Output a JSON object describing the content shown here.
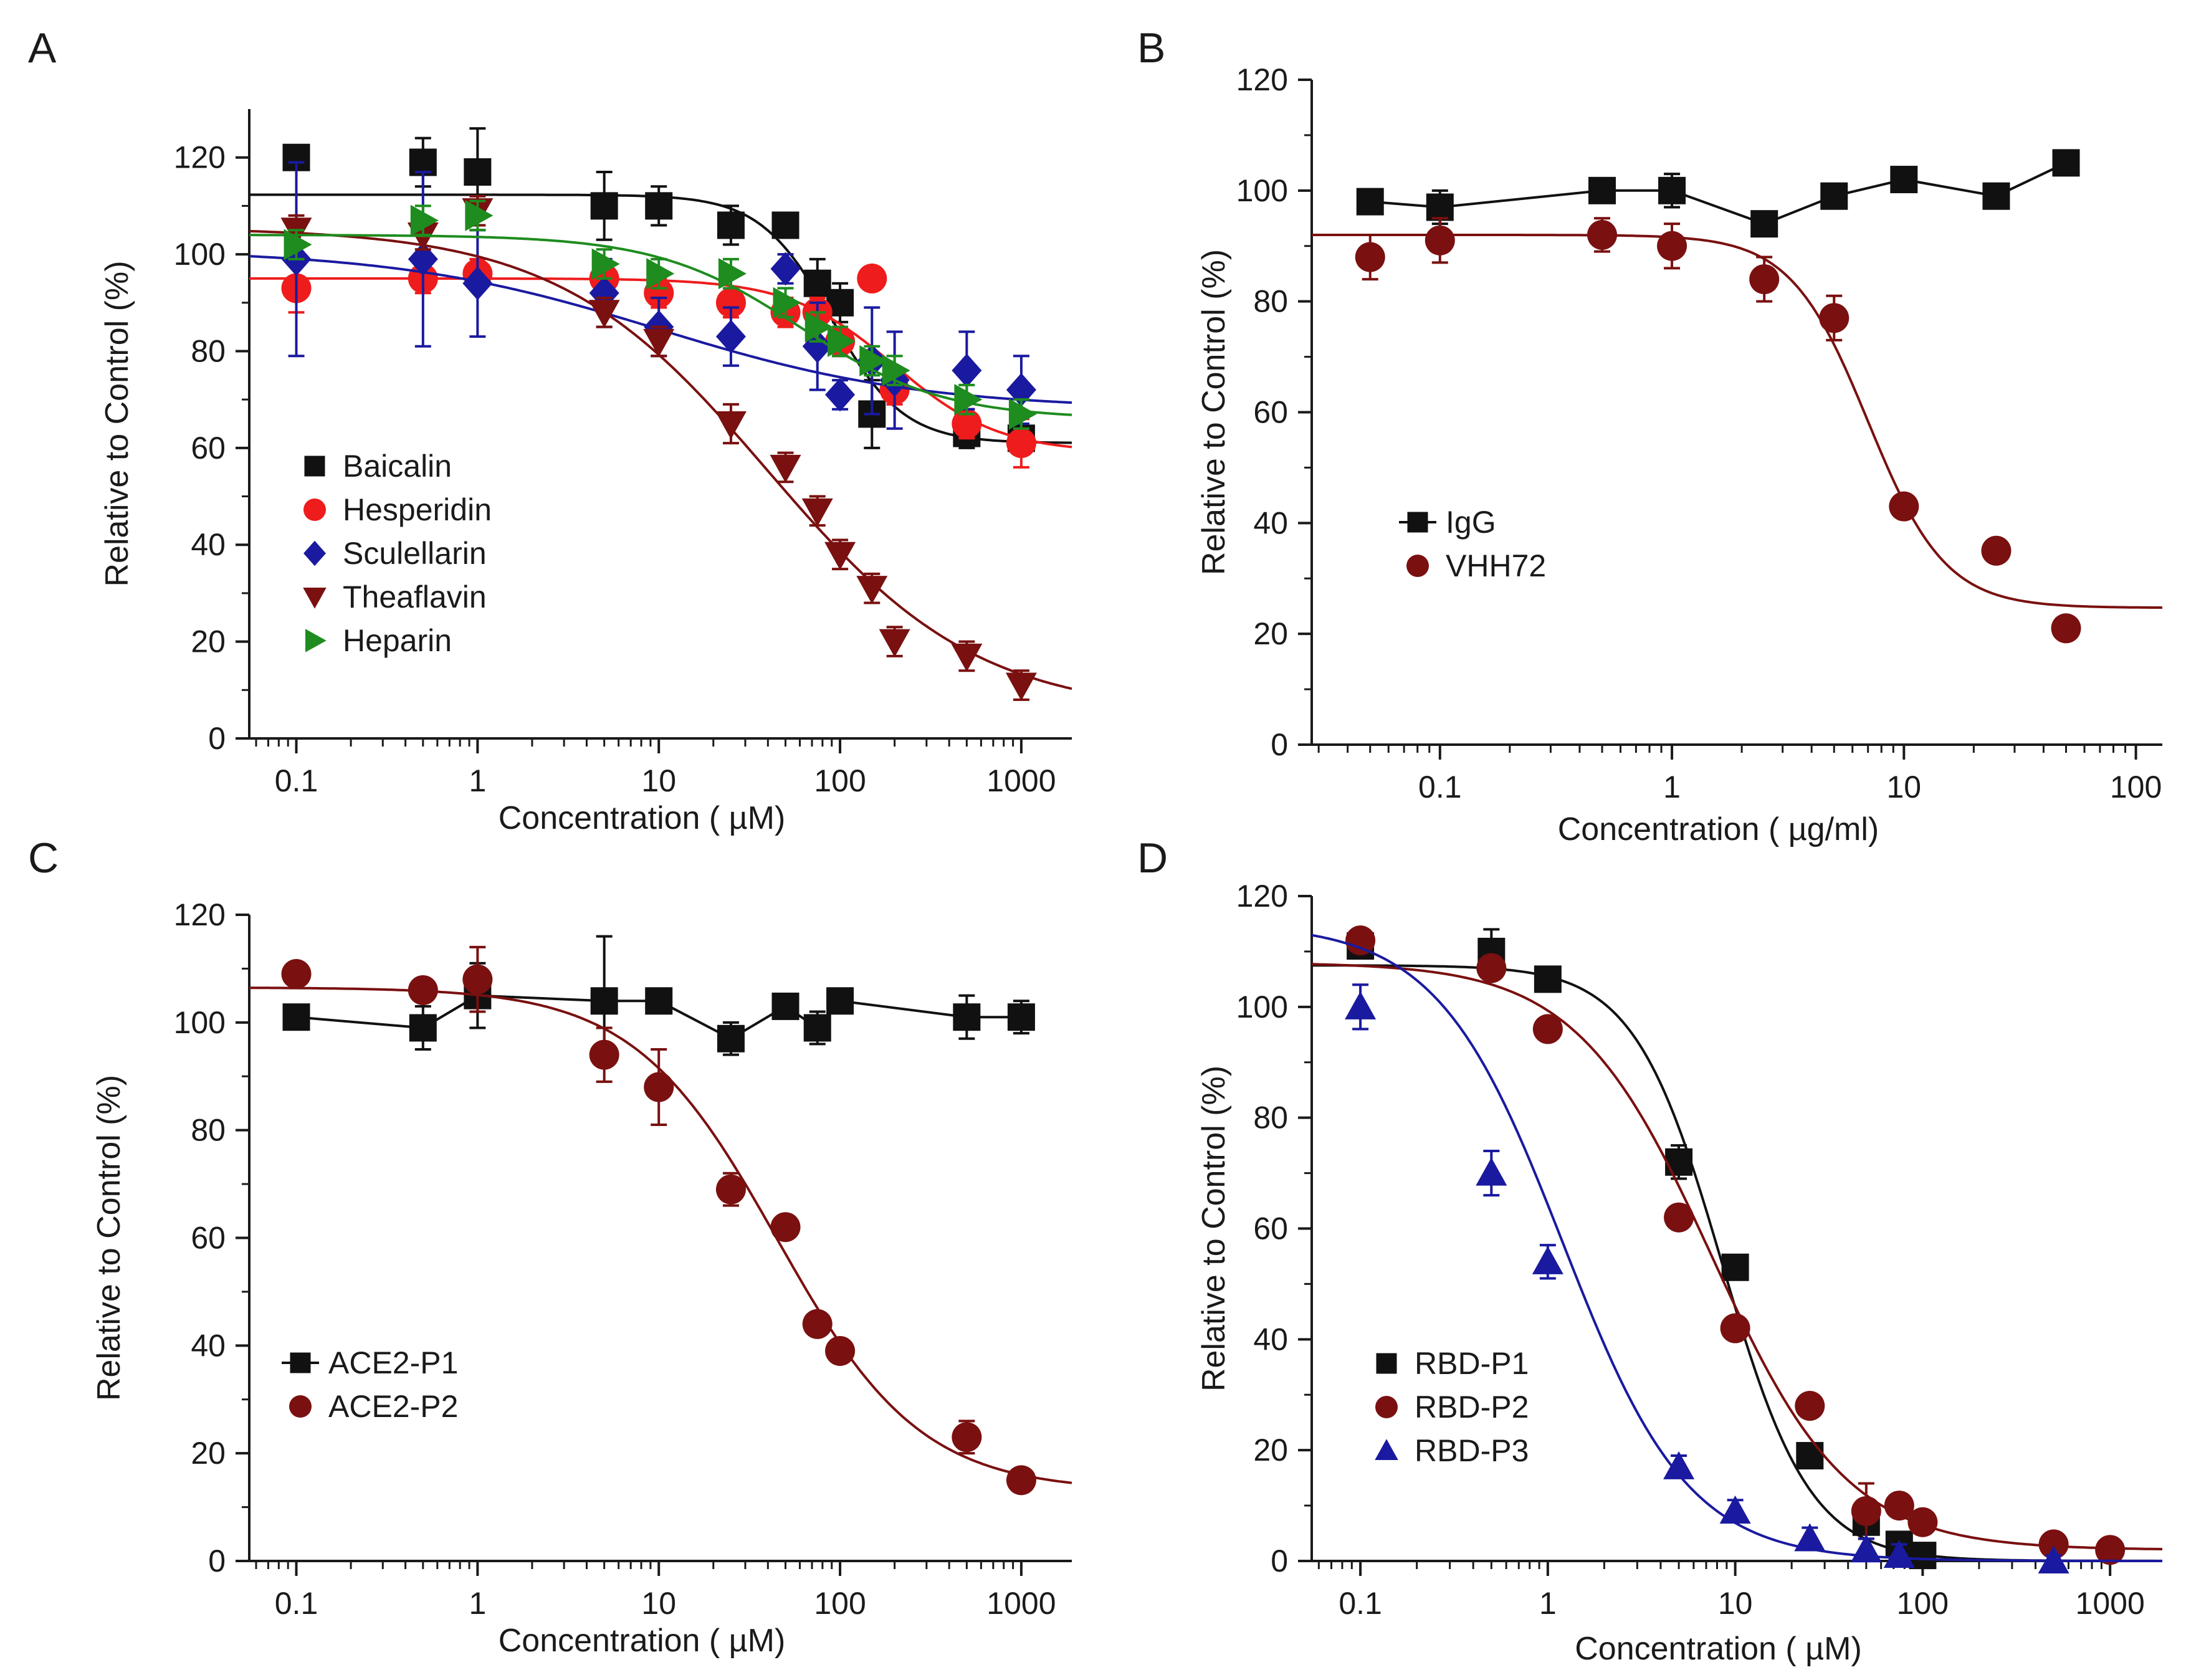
{
  "chart_data": [
    {
      "type": "scatter",
      "panel": "A",
      "xscale": "log",
      "xlabel": "Concentration ( µM)",
      "ylabel": "Relative to Control (%)",
      "xlim": [
        0.055,
        1900
      ],
      "ylim": [
        0,
        130
      ],
      "xticks": [
        0.1,
        1,
        10,
        100,
        1000
      ],
      "xtick_labels": [
        "0.1",
        "1",
        "10",
        "100",
        "1000"
      ],
      "yticks": [
        0,
        20,
        40,
        60,
        80,
        100,
        120
      ],
      "ytick_labels": [
        "0",
        "20",
        "40",
        "60",
        "80",
        "100",
        "120"
      ],
      "legend_position": "center-left",
      "series": [
        {
          "name": "Baicalin",
          "color": "#111111",
          "marker": "square",
          "x": [
            0.1,
            0.5,
            1,
            5,
            10,
            25,
            50,
            75,
            100,
            150,
            500,
            1000
          ],
          "y": [
            120,
            119,
            117,
            110,
            110,
            106,
            106,
            94,
            90,
            67,
            63,
            62
          ],
          "err": [
            2,
            5,
            9,
            7,
            4,
            4,
            2,
            5,
            4,
            7,
            3,
            3
          ],
          "fit": {
            "top": 112.3,
            "bottom": 61,
            "ec50": 90,
            "hill": 2.2
          }
        },
        {
          "name": "Hesperidin",
          "color": "#ee1c1c",
          "marker": "circle",
          "x": [
            0.1,
            0.5,
            1,
            5,
            10,
            25,
            50,
            75,
            100,
            150,
            200,
            500,
            1000
          ],
          "y": [
            93,
            95,
            96,
            95,
            92,
            90,
            88,
            88,
            82,
            95,
            72,
            65,
            61
          ],
          "err": [
            5,
            3,
            3,
            3,
            3,
            3,
            3,
            3,
            3,
            0,
            3,
            3,
            5
          ],
          "fit": {
            "top": 95,
            "bottom": 59,
            "ec50": 200,
            "hill": 1.5
          }
        },
        {
          "name": "Sculellarin",
          "color": "#1a1aa0",
          "marker": "diamond",
          "x": [
            0.1,
            0.5,
            1,
            5,
            10,
            25,
            50,
            75,
            100,
            150,
            200,
            500,
            1000
          ],
          "y": [
            99,
            99,
            94,
            92,
            85,
            83,
            97,
            81,
            71,
            78,
            74,
            76,
            72
          ],
          "err": [
            20,
            18,
            11,
            7,
            6,
            6,
            3,
            9,
            3,
            11,
            10,
            8,
            7
          ],
          "fit": {
            "top": 101,
            "bottom": 68,
            "ec50": 10,
            "hill": 0.6
          }
        },
        {
          "name": "Theaflavin",
          "color": "#7a1010",
          "marker": "triangle-down",
          "x": [
            0.1,
            0.5,
            1,
            5,
            10,
            25,
            50,
            75,
            100,
            150,
            200,
            500,
            1000
          ],
          "y": [
            105,
            104,
            109,
            88,
            82,
            65,
            56,
            47,
            38,
            31,
            20,
            17,
            11
          ],
          "err": [
            3,
            3,
            3,
            3,
            3,
            4,
            3,
            3,
            3,
            3,
            3,
            3,
            3
          ],
          "fit": {
            "top": 105.5,
            "bottom": 5,
            "ec50": 40,
            "hill": 0.75
          }
        },
        {
          "name": "Heparin",
          "color": "#1e8c1e",
          "marker": "triangle-right",
          "x": [
            0.1,
            0.5,
            1,
            5,
            10,
            25,
            50,
            75,
            100,
            150,
            200,
            500,
            1000
          ],
          "y": [
            102,
            107,
            108,
            98,
            96,
            96,
            90,
            85,
            82,
            78,
            76,
            70,
            67
          ],
          "err": [
            3,
            3,
            3,
            3,
            3,
            3,
            3,
            3,
            3,
            3,
            3,
            3,
            3
          ],
          "fit": {
            "top": 104,
            "bottom": 66,
            "ec50": 60,
            "hill": 1.1
          }
        }
      ]
    },
    {
      "type": "scatter",
      "panel": "B",
      "xscale": "log",
      "xlabel": "Concentration ( µg/ml)",
      "ylabel": "Relative to Control (%)",
      "xlim": [
        0.028,
        130
      ],
      "ylim": [
        0,
        120
      ],
      "xticks": [
        0.1,
        1,
        10,
        100
      ],
      "xtick_labels": [
        "0.1",
        "1",
        "10",
        "100"
      ],
      "yticks": [
        0,
        20,
        40,
        60,
        80,
        100,
        120
      ],
      "ytick_labels": [
        "0",
        "20",
        "40",
        "60",
        "80",
        "100",
        "120"
      ],
      "legend_position": "center-left",
      "series": [
        {
          "name": "IgG",
          "color": "#111111",
          "marker": "square",
          "connect": true,
          "x": [
            0.05,
            0.1,
            0.5,
            1,
            2.5,
            5,
            10,
            25,
            50
          ],
          "y": [
            98,
            97,
            100,
            100,
            94,
            99,
            102,
            99,
            105
          ],
          "err": [
            2,
            3,
            2,
            3,
            2,
            2,
            2,
            2,
            2
          ]
        },
        {
          "name": "VHH72",
          "color": "#7a1010",
          "marker": "circle",
          "x": [
            0.05,
            0.1,
            0.5,
            1,
            2.5,
            5,
            10,
            25,
            50
          ],
          "y": [
            88,
            91,
            92,
            90,
            84,
            77,
            43,
            35,
            21
          ],
          "err": [
            4,
            4,
            3,
            4,
            4,
            4,
            0,
            2,
            0
          ],
          "fit": {
            "top": 92,
            "bottom": 24.7,
            "ec50": 7,
            "hill": 2.6
          }
        }
      ]
    },
    {
      "type": "scatter",
      "panel": "C",
      "xscale": "log",
      "xlabel": "Concentration ( µM)",
      "ylabel": "Relative to Control (%)",
      "xlim": [
        0.055,
        1900
      ],
      "ylim": [
        0,
        120
      ],
      "xticks": [
        0.1,
        1,
        10,
        100,
        1000
      ],
      "xtick_labels": [
        "0.1",
        "1",
        "10",
        "100",
        "1000"
      ],
      "yticks": [
        0,
        20,
        40,
        60,
        80,
        100,
        120
      ],
      "ytick_labels": [
        "0",
        "20",
        "40",
        "60",
        "80",
        "100",
        "120"
      ],
      "legend_position": "bottom-left",
      "series": [
        {
          "name": "ACE2-P1",
          "color": "#111111",
          "marker": "square",
          "connect": true,
          "x": [
            0.1,
            0.5,
            1,
            5,
            10,
            25,
            50,
            75,
            100,
            500,
            1000
          ],
          "y": [
            101,
            99,
            105,
            104,
            104,
            97,
            103,
            99,
            104,
            101,
            101
          ],
          "err": [
            2,
            4,
            6,
            12,
            2,
            3,
            2,
            3,
            2,
            4,
            3
          ]
        },
        {
          "name": "ACE2-P2",
          "color": "#7a1010",
          "marker": "circle",
          "x": [
            0.1,
            0.5,
            1,
            5,
            10,
            25,
            50,
            75,
            100,
            500,
            1000
          ],
          "y": [
            109,
            106,
            108,
            94,
            88,
            69,
            62,
            44,
            39,
            23,
            15
          ],
          "err": [
            2,
            2,
            6,
            5,
            7,
            3,
            2,
            2,
            2,
            3,
            2
          ],
          "fit": {
            "top": 106.5,
            "bottom": 13,
            "ec50": 45,
            "hill": 1.1
          }
        }
      ]
    },
    {
      "type": "scatter",
      "panel": "D",
      "xscale": "log",
      "xlabel": "Concentration ( µM)",
      "ylabel": "Relative to Control (%)",
      "xlim": [
        0.055,
        1900
      ],
      "ylim": [
        0,
        120
      ],
      "xticks": [
        0.1,
        1,
        10,
        100,
        1000
      ],
      "xtick_labels": [
        "0.1",
        "1",
        "10",
        "100",
        "1000"
      ],
      "yticks": [
        0,
        20,
        40,
        60,
        80,
        100,
        120
      ],
      "ytick_labels": [
        "0",
        "20",
        "40",
        "60",
        "80",
        "100",
        "120"
      ],
      "legend_position": "bottom-left",
      "series": [
        {
          "name": "RBD-P1",
          "color": "#111111",
          "marker": "square",
          "x": [
            0.1,
            0.5,
            1,
            5,
            10,
            25,
            50,
            75,
            100
          ],
          "y": [
            111,
            110,
            105,
            72,
            53,
            19,
            7,
            3,
            1
          ],
          "err": [
            2,
            4,
            2,
            3,
            2,
            2,
            2,
            2,
            1
          ],
          "fit": {
            "top": 107.5,
            "bottom": 0,
            "ec50": 8.5,
            "hill": 1.85
          }
        },
        {
          "name": "RBD-P2",
          "color": "#7a1010",
          "marker": "circle",
          "x": [
            0.1,
            0.5,
            1,
            5,
            10,
            25,
            50,
            75,
            100,
            500,
            1000
          ],
          "y": [
            112,
            107,
            96,
            62,
            42,
            28,
            9,
            10,
            7,
            3,
            2
          ],
          "err": [
            2,
            2,
            2,
            2,
            2,
            2,
            5,
            2,
            2,
            2,
            2
          ],
          "fit": {
            "top": 108,
            "bottom": 2,
            "ec50": 7.5,
            "hill": 1.2
          }
        },
        {
          "name": "RBD-P3",
          "color": "#1a1aa0",
          "marker": "triangle-up",
          "x": [
            0.1,
            0.5,
            1,
            5,
            10,
            25,
            50,
            75,
            500
          ],
          "y": [
            100,
            70,
            54,
            17,
            9,
            4,
            2,
            1,
            0
          ],
          "err": [
            4,
            4,
            3,
            2,
            2,
            2,
            2,
            2,
            1
          ],
          "fit": {
            "top": 115,
            "bottom": 0,
            "ec50": 1.2,
            "hill": 1.3
          }
        }
      ]
    }
  ]
}
